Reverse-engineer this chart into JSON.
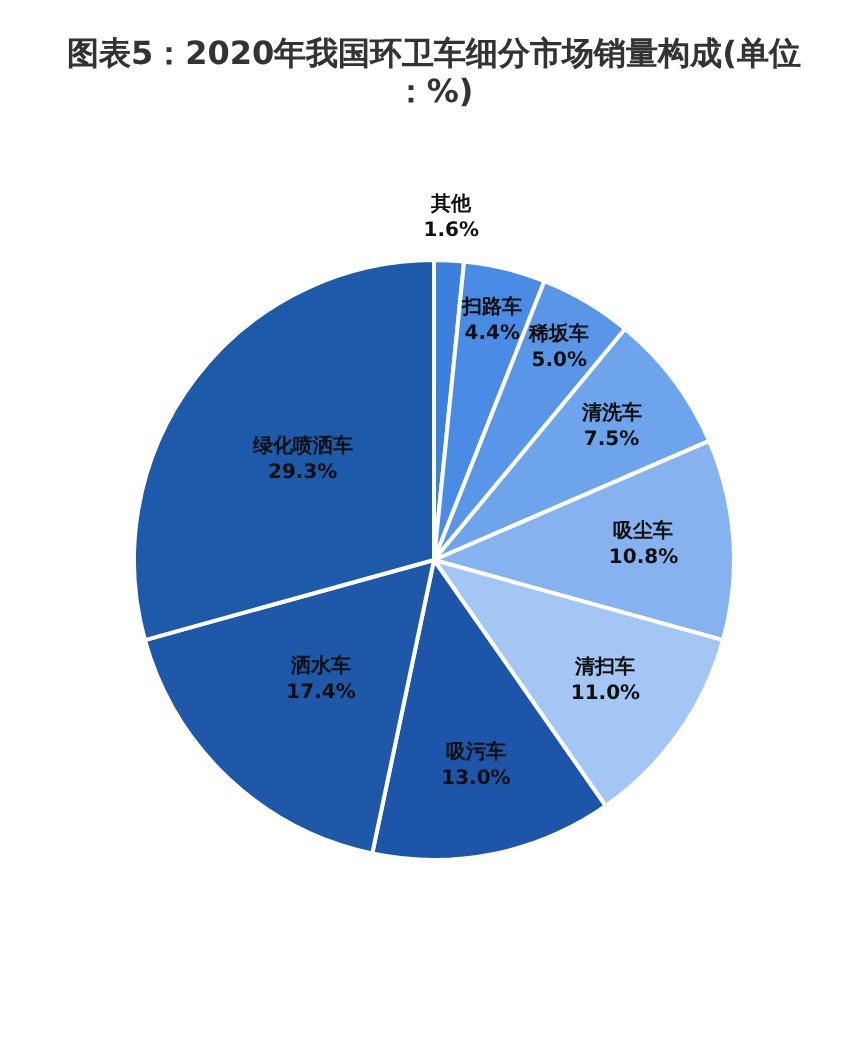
{
  "chart_data": {
    "type": "pie",
    "title": "图表5：2020年我国环卫车细分市场销量构成(单位：%)",
    "categories": [
      "其他",
      "扫路车",
      "稀坂车",
      "清洗车",
      "吸尘车",
      "清扫车",
      "吸污车",
      "洒水车",
      "绿化喷洒车"
    ],
    "values": [
      1.6,
      4.4,
      5.0,
      7.5,
      10.8,
      11.0,
      13.0,
      17.4,
      29.3
    ],
    "value_labels": [
      "1.6%",
      "4.4%",
      "5.0%",
      "7.5%",
      "10.8%",
      "11.0%",
      "13.0%",
      "17.4%",
      "29.3%"
    ],
    "colors": [
      "#3d7fdc",
      "#4a8be6",
      "#5a96e8",
      "#6ea4ec",
      "#86b3ef",
      "#a4c6f4",
      "#1d55a8",
      "#1f58a8",
      "#1e5aaa"
    ]
  }
}
